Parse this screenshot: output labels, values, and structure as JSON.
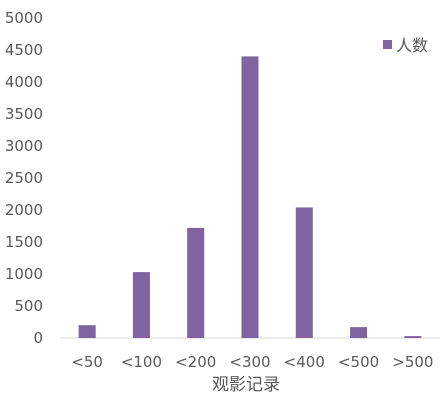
{
  "chart_data": {
    "type": "bar",
    "title": "",
    "xlabel": "观影记录",
    "ylabel": "",
    "categories": [
      "<50",
      "<100",
      "<200",
      "<300",
      "<400",
      "<500",
      ">500"
    ],
    "series": [
      {
        "name": "人数",
        "values": [
          200,
          1030,
          1720,
          4400,
          2040,
          170,
          30
        ],
        "color": "#8064A2"
      }
    ],
    "ylim": [
      0,
      5000
    ],
    "yticks": [
      0,
      500,
      1000,
      1500,
      2000,
      2500,
      3000,
      3500,
      4000,
      4500,
      5000
    ],
    "grid": false,
    "legend_position": "top-right",
    "colors": {
      "bar": "#8064A2",
      "axis": "#D9D9D9",
      "text": "#595959"
    }
  }
}
